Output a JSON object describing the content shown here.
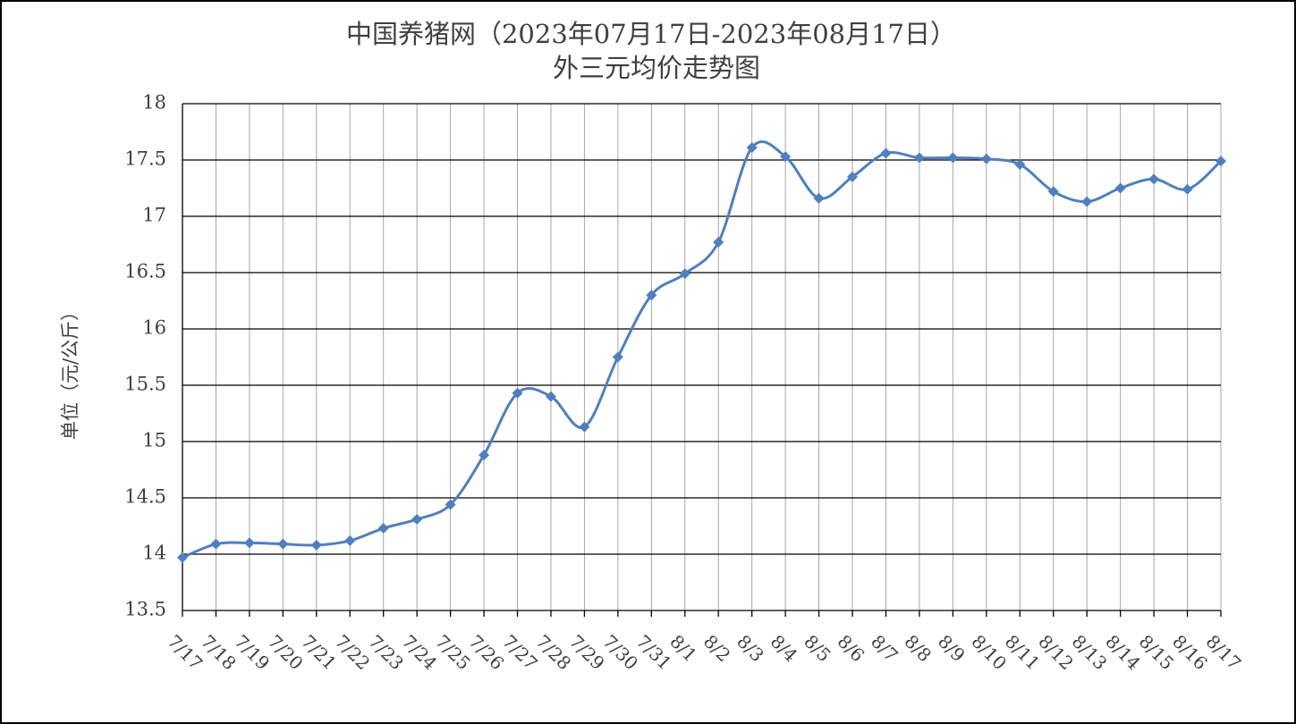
{
  "chart_data": {
    "type": "line",
    "title": "中国养猪网（2023年07月17日-2023年08月17日）",
    "subtitle": "外三元均价走势图",
    "y_label": "单位（元/公斤）",
    "categories": [
      "7/17",
      "7/18",
      "7/19",
      "7/20",
      "7/21",
      "7/22",
      "7/23",
      "7/24",
      "7/25",
      "7/26",
      "7/27",
      "7/28",
      "7/29",
      "7/30",
      "7/31",
      "8/1",
      "8/2",
      "8/3",
      "8/4",
      "8/5",
      "8/6",
      "8/7",
      "8/8",
      "8/9",
      "8/10",
      "8/11",
      "8/12",
      "8/13",
      "8/14",
      "8/15",
      "8/16",
      "8/17"
    ],
    "values": [
      13.97,
      14.09,
      14.1,
      14.09,
      14.08,
      14.12,
      14.23,
      14.31,
      14.44,
      14.88,
      15.43,
      15.4,
      15.13,
      15.75,
      16.3,
      16.49,
      16.77,
      17.61,
      17.53,
      17.16,
      17.35,
      17.56,
      17.52,
      17.52,
      17.51,
      17.46,
      17.22,
      17.13,
      17.25,
      17.33,
      17.24,
      17.49
    ],
    "color": "#4f7fbf",
    "ylim": [
      13.5,
      18
    ],
    "yticks": [
      13.5,
      14,
      14.5,
      15,
      15.5,
      16,
      16.5,
      17,
      17.5,
      18
    ],
    "grid": true
  }
}
